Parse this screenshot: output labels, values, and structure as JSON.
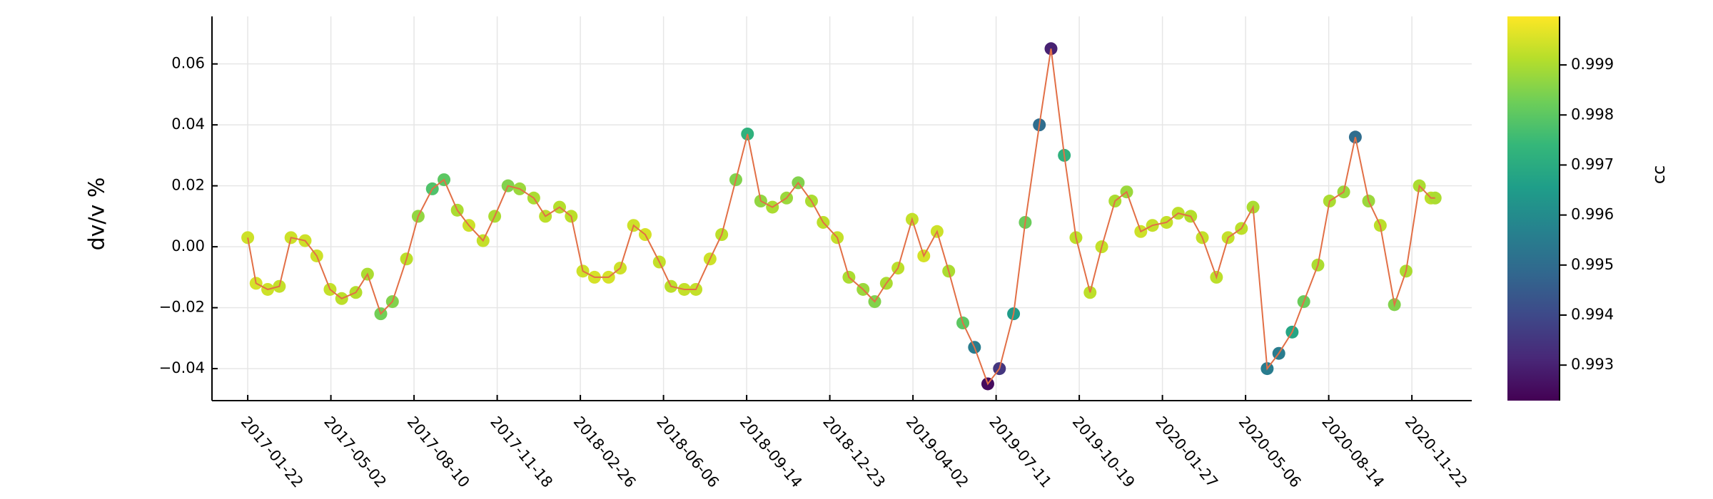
{
  "chart_data": {
    "type": "scatter",
    "ylabel": "dv/v %",
    "colorbar_label": "cc",
    "colormap": "viridis",
    "line_color": "#e26f46",
    "grid": true,
    "xlim": [
      "2016-12-10",
      "2021-02-02"
    ],
    "xticks": [
      "2017-01-22",
      "2017-05-02",
      "2017-08-10",
      "2017-11-18",
      "2018-02-26",
      "2018-06-06",
      "2018-09-14",
      "2018-12-23",
      "2019-04-02",
      "2019-07-11",
      "2019-10-19",
      "2020-01-27",
      "2020-05-06",
      "2020-08-14",
      "2020-11-22"
    ],
    "ylim": [
      -0.0505,
      0.0756
    ],
    "yticks": [
      {
        "value": -0.04,
        "label": "−0.04"
      },
      {
        "value": -0.02,
        "label": "−0.02"
      },
      {
        "value": 0,
        "label": "0.00"
      },
      {
        "value": 0.02,
        "label": "0.02"
      },
      {
        "value": 0.04,
        "label": "0.04"
      },
      {
        "value": 0.06,
        "label": "0.06"
      }
    ],
    "clim": [
      0.99229,
      0.99997
    ],
    "cticks": [
      0.993,
      0.994,
      0.995,
      0.996,
      0.997,
      0.998,
      0.999
    ],
    "x": [
      "2017-01-22",
      "2017-02-01",
      "2017-02-15",
      "2017-03-01",
      "2017-03-15",
      "2017-04-01",
      "2017-04-15",
      "2017-05-01",
      "2017-05-15",
      "2017-06-01",
      "2017-06-15",
      "2017-07-01",
      "2017-07-15",
      "2017-08-01",
      "2017-08-15",
      "2017-09-01",
      "2017-09-15",
      "2017-10-01",
      "2017-10-15",
      "2017-11-01",
      "2017-11-15",
      "2017-12-01",
      "2017-12-15",
      "2018-01-01",
      "2018-01-15",
      "2018-02-01",
      "2018-02-15",
      "2018-03-01",
      "2018-03-15",
      "2018-04-01",
      "2018-04-15",
      "2018-05-01",
      "2018-05-15",
      "2018-06-01",
      "2018-06-15",
      "2018-07-01",
      "2018-07-15",
      "2018-08-01",
      "2018-08-15",
      "2018-09-01",
      "2018-09-15",
      "2018-10-01",
      "2018-10-15",
      "2018-11-01",
      "2018-11-15",
      "2018-12-01",
      "2018-12-15",
      "2019-01-01",
      "2019-01-15",
      "2019-02-01",
      "2019-02-15",
      "2019-03-01",
      "2019-03-15",
      "2019-04-01",
      "2019-04-15",
      "2019-05-01",
      "2019-05-15",
      "2019-06-01",
      "2019-06-15",
      "2019-07-01",
      "2019-07-15",
      "2019-08-01",
      "2019-08-15",
      "2019-09-01",
      "2019-09-15",
      "2019-10-01",
      "2019-10-15",
      "2019-11-01",
      "2019-11-15",
      "2019-12-01",
      "2019-12-15",
      "2020-01-01",
      "2020-01-15",
      "2020-02-01",
      "2020-02-15",
      "2020-03-01",
      "2020-03-15",
      "2020-04-01",
      "2020-04-15",
      "2020-05-01",
      "2020-05-15",
      "2020-06-01",
      "2020-06-15",
      "2020-07-01",
      "2020-07-15",
      "2020-08-01",
      "2020-08-15",
      "2020-09-01",
      "2020-09-15",
      "2020-10-01",
      "2020-10-15",
      "2020-11-01",
      "2020-11-15",
      "2020-12-01",
      "2020-12-15",
      "2020-12-20"
    ],
    "values": [
      0.003,
      -0.012,
      -0.014,
      -0.013,
      0.003,
      0.002,
      -0.003,
      -0.014,
      -0.017,
      -0.015,
      -0.009,
      -0.022,
      -0.018,
      -0.004,
      0.01,
      0.019,
      0.022,
      0.012,
      0.007,
      0.002,
      0.01,
      0.02,
      0.019,
      0.016,
      0.01,
      0.013,
      0.01,
      -0.008,
      -0.01,
      -0.01,
      -0.007,
      0.007,
      0.004,
      -0.005,
      -0.013,
      -0.014,
      -0.014,
      -0.004,
      0.004,
      0.022,
      0.037,
      0.015,
      0.013,
      0.016,
      0.021,
      0.015,
      0.008,
      0.003,
      -0.01,
      -0.014,
      -0.018,
      -0.012,
      -0.007,
      0.009,
      -0.003,
      0.005,
      -0.008,
      -0.025,
      -0.033,
      -0.045,
      -0.04,
      -0.022,
      0.008,
      0.04,
      0.065,
      0.03,
      0.003,
      -0.015,
      0.0,
      0.015,
      0.018,
      0.005,
      0.007,
      0.008,
      0.011,
      0.01,
      0.003,
      -0.01,
      0.003,
      0.006,
      0.013,
      -0.04,
      -0.035,
      -0.028,
      -0.018,
      -0.006,
      0.015,
      0.018,
      0.036,
      0.015,
      0.007,
      -0.019,
      -0.008,
      0.02,
      0.016,
      0.016
    ],
    "color_values": [
      0.9994,
      0.9995,
      0.9994,
      0.9993,
      0.9994,
      0.9994,
      0.9994,
      0.9993,
      0.9992,
      0.9991,
      0.999,
      0.9983,
      0.9985,
      0.9992,
      0.9987,
      0.9978,
      0.998,
      0.999,
      0.9994,
      0.9993,
      0.999,
      0.9985,
      0.9988,
      0.999,
      0.9992,
      0.9991,
      0.9992,
      0.9994,
      0.9995,
      0.9995,
      0.9994,
      0.9994,
      0.9995,
      0.9993,
      0.9992,
      0.9993,
      0.9993,
      0.9994,
      0.9992,
      0.9985,
      0.9972,
      0.9987,
      0.999,
      0.9988,
      0.9985,
      0.999,
      0.9992,
      0.9993,
      0.999,
      0.9988,
      0.9985,
      0.999,
      0.9992,
      0.9993,
      0.9995,
      0.9994,
      0.999,
      0.998,
      0.9955,
      0.9925,
      0.9935,
      0.9965,
      0.9982,
      0.995,
      0.993,
      0.9972,
      0.9992,
      0.9992,
      0.9993,
      0.999,
      0.9988,
      0.9994,
      0.9993,
      0.9993,
      0.9992,
      0.9991,
      0.9993,
      0.9992,
      0.9993,
      0.9992,
      0.999,
      0.9955,
      0.9955,
      0.9968,
      0.9982,
      0.999,
      0.999,
      0.9988,
      0.995,
      0.9988,
      0.9992,
      0.9985,
      0.999,
      0.999,
      0.9992,
      0.999
    ]
  }
}
